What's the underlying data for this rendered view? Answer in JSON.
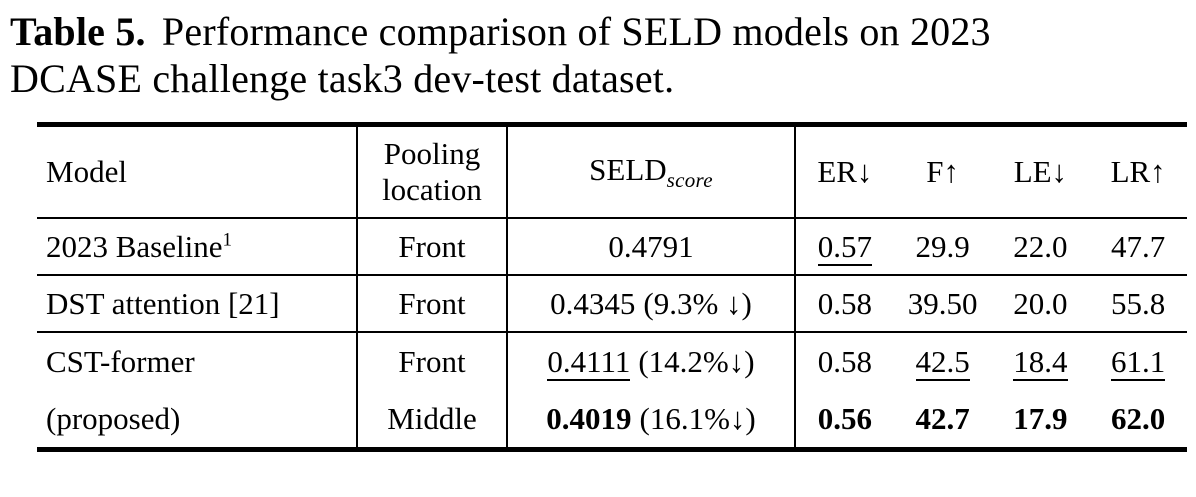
{
  "colors": {
    "text": "#000000",
    "background": "#ffffff"
  },
  "caption": {
    "label": "Table 5.",
    "text": " Performance comparison of SELD models on 2023 DCASE challenge task3 dev-test dataset."
  },
  "table": {
    "header": {
      "model": "Model",
      "pooling": "Pooling location",
      "seld_name": "SELD",
      "seld_sub": "score",
      "metrics": [
        "ER↓",
        "F↑",
        "LE↓",
        "LR↑"
      ]
    },
    "rows": [
      {
        "model": "2023 Baseline",
        "model_sup": "1",
        "pooling": "Front",
        "seld": "0.4791",
        "seld_note": "",
        "er": "0.57",
        "f": "29.9",
        "le": "22.0",
        "lr": "47.7"
      },
      {
        "model": "DST attention [21]",
        "pooling": "Front",
        "seld": "0.4345",
        "seld_note": "(9.3% ↓)",
        "er": "0.58",
        "f": "39.50",
        "le": "20.0",
        "lr": "55.8"
      },
      {
        "model": "CST-former",
        "pooling": "Front",
        "seld": "0.4111",
        "seld_note": "(14.2%↓)",
        "er": "0.58",
        "f": "42.5",
        "le": "18.4",
        "lr": "61.1"
      },
      {
        "model": "(proposed)",
        "pooling": "Middle",
        "seld": "0.4019",
        "seld_note": "(16.1%↓)",
        "er": "0.56",
        "f": "42.7",
        "le": "17.9",
        "lr": "62.0"
      }
    ]
  }
}
